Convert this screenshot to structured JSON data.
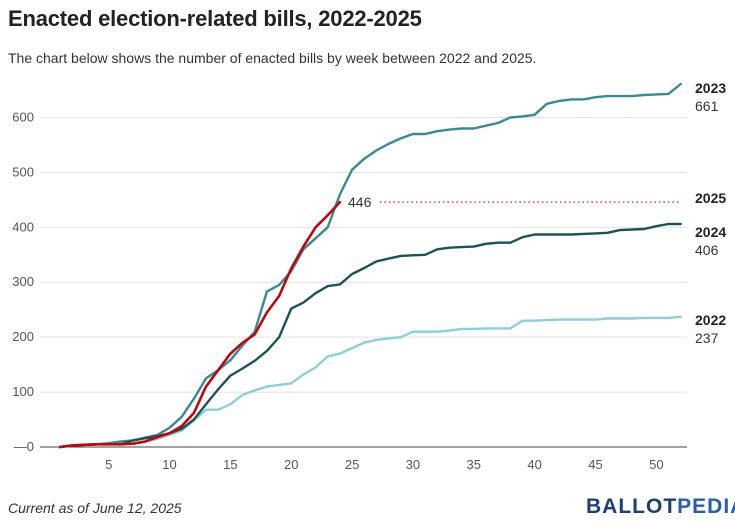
{
  "title": "Enacted election-related bills, 2022-2025",
  "subtitle": "The chart below shows the number of enacted bills by week between 2022 and 2025.",
  "footer_note": "Current as of June 12, 2025",
  "logo": {
    "part1": "BALLOT",
    "part2": "PEDIA"
  },
  "chart_data": {
    "type": "line",
    "title": "Enacted election-related bills, 2022-2025",
    "xlabel": "",
    "ylabel": "",
    "xlim": [
      0,
      52
    ],
    "ylim": [
      0,
      661
    ],
    "x_ticks": [
      5,
      10,
      15,
      20,
      25,
      30,
      35,
      40,
      45,
      50
    ],
    "y_ticks": [
      0,
      100,
      200,
      300,
      400,
      500,
      600
    ],
    "y_tick_labels": [
      "—0",
      "100",
      "200",
      "300",
      "400",
      "500",
      "600"
    ],
    "grid": "horizontal",
    "series": [
      {
        "name": "2022",
        "color": "#8ccfd6",
        "end_label": "237",
        "x": [
          1,
          2,
          3,
          4,
          5,
          6,
          7,
          8,
          9,
          10,
          11,
          12,
          13,
          14,
          15,
          16,
          17,
          18,
          19,
          20,
          21,
          22,
          23,
          24,
          25,
          26,
          27,
          28,
          29,
          30,
          31,
          32,
          33,
          34,
          35,
          36,
          37,
          38,
          39,
          40,
          41,
          42,
          43,
          44,
          45,
          46,
          47,
          48,
          49,
          50,
          51,
          52
        ],
        "values": [
          0,
          3,
          4,
          5,
          5,
          5,
          6,
          10,
          15,
          22,
          30,
          48,
          68,
          68,
          78,
          95,
          103,
          110,
          113,
          116,
          132,
          145,
          165,
          170,
          180,
          190,
          195,
          198,
          200,
          210,
          210,
          210,
          212,
          215,
          215,
          216,
          216,
          216,
          230,
          230,
          231,
          232,
          232,
          232,
          232,
          234,
          234,
          234,
          235,
          235,
          235,
          237
        ]
      },
      {
        "name": "2023",
        "color": "#3a8a94",
        "end_label": "661",
        "x": [
          1,
          2,
          3,
          4,
          5,
          6,
          7,
          8,
          9,
          10,
          11,
          12,
          13,
          14,
          15,
          16,
          17,
          18,
          19,
          20,
          21,
          22,
          23,
          24,
          25,
          26,
          27,
          28,
          29,
          30,
          31,
          32,
          33,
          34,
          35,
          36,
          37,
          38,
          39,
          40,
          41,
          42,
          43,
          44,
          45,
          46,
          47,
          48,
          49,
          50,
          51,
          52
        ],
        "values": [
          0,
          3,
          4,
          5,
          7,
          10,
          12,
          17,
          22,
          35,
          55,
          88,
          125,
          140,
          158,
          185,
          210,
          283,
          295,
          320,
          360,
          380,
          400,
          460,
          505,
          525,
          540,
          552,
          562,
          570,
          570,
          575,
          578,
          580,
          580,
          585,
          590,
          600,
          602,
          605,
          625,
          630,
          633,
          633,
          637,
          639,
          639,
          639,
          641,
          642,
          643,
          661
        ]
      },
      {
        "name": "2024",
        "color": "#1e5259",
        "end_label": "406",
        "x": [
          1,
          2,
          3,
          4,
          5,
          6,
          7,
          8,
          9,
          10,
          11,
          12,
          13,
          14,
          15,
          16,
          17,
          18,
          19,
          20,
          21,
          22,
          23,
          24,
          25,
          26,
          27,
          28,
          29,
          30,
          31,
          32,
          33,
          34,
          35,
          36,
          37,
          38,
          39,
          40,
          41,
          42,
          43,
          44,
          45,
          46,
          47,
          48,
          49,
          50,
          51,
          52
        ],
        "values": [
          0,
          3,
          4,
          5,
          5,
          5,
          12,
          16,
          20,
          25,
          33,
          50,
          78,
          105,
          130,
          143,
          157,
          175,
          200,
          252,
          263,
          280,
          293,
          296,
          315,
          326,
          338,
          343,
          348,
          349,
          350,
          360,
          363,
          364,
          365,
          370,
          372,
          372,
          382,
          387,
          387,
          387,
          387,
          388,
          389,
          390,
          395,
          396,
          397,
          402,
          406,
          406
        ]
      },
      {
        "name": "2025",
        "color": "#b8090f",
        "end_label": "446",
        "x": [
          1,
          2,
          3,
          4,
          5,
          6,
          7,
          8,
          9,
          10,
          11,
          12,
          13,
          14,
          15,
          16,
          17,
          18,
          19,
          20,
          21,
          22,
          23,
          24
        ],
        "values": [
          0,
          3,
          4,
          5,
          5,
          5,
          6,
          10,
          18,
          25,
          38,
          62,
          110,
          140,
          170,
          190,
          205,
          245,
          275,
          325,
          365,
          400,
          422,
          446
        ]
      }
    ],
    "projection": {
      "series": "2025",
      "from_x": 24,
      "to_x": 52,
      "value": 446,
      "style": "dotted"
    }
  }
}
